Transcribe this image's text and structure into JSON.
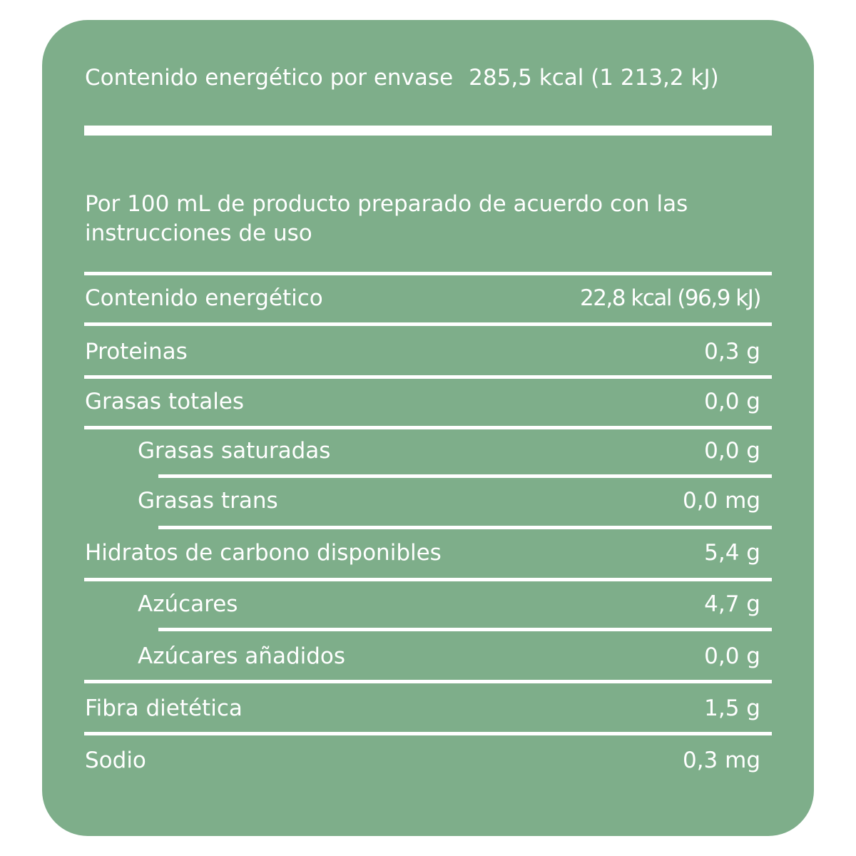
{
  "header": {
    "label": "Contenido energético por envase",
    "value": "285,5 kcal (1 213,2 kJ)"
  },
  "intro_text": "Por 100 mL de producto preparado de acuerdo con las instrucciones de uso",
  "rows": [
    {
      "label": "Contenido energético",
      "value": "22,8 kcal (96,9 kJ)"
    },
    {
      "label": "Proteinas",
      "value": "0,3 g"
    },
    {
      "label": "Grasas totales",
      "value": "0,0 g"
    },
    {
      "label": "Grasas saturadas",
      "value": "0,0 g"
    },
    {
      "label": "Grasas trans",
      "value": "0,0 mg"
    },
    {
      "label": "Hidratos de carbono disponibles",
      "value": "5,4 g"
    },
    {
      "label": "Azúcares",
      "value": "4,7 g"
    },
    {
      "label": "Azúcares añadidos",
      "value": "0,0 g"
    },
    {
      "label": "Fibra dietética",
      "value": "1,5 g"
    },
    {
      "label": "Sodio",
      "value": "0,3 mg"
    }
  ],
  "colors": {
    "panel": "#7eae8a",
    "text": "#ffffff"
  }
}
